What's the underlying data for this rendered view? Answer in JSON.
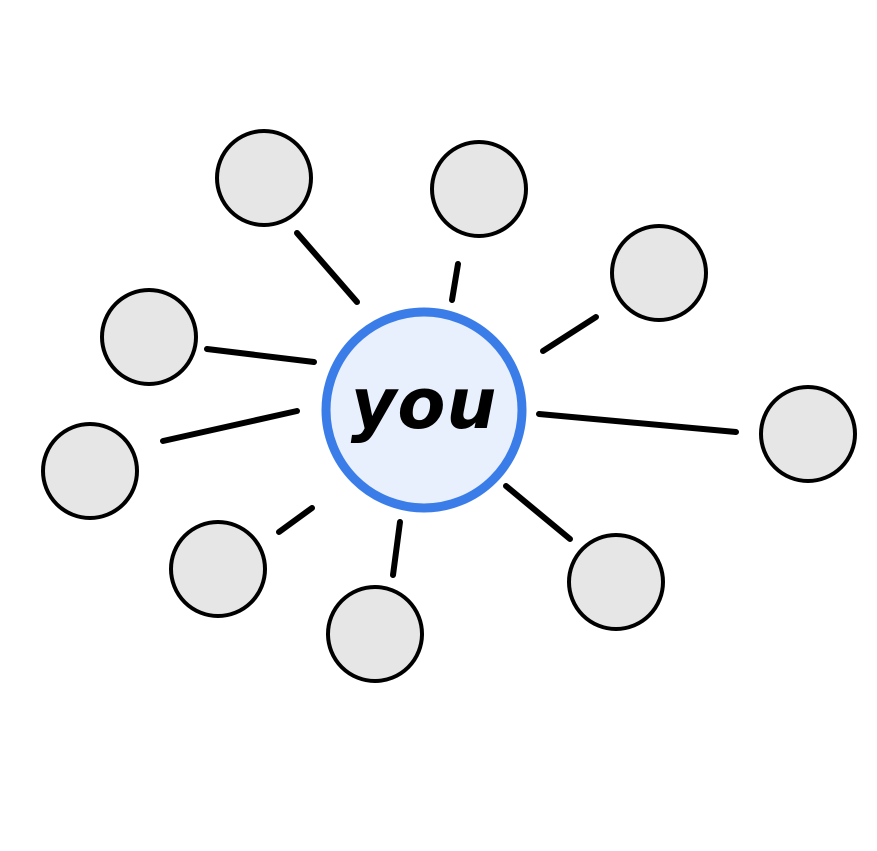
{
  "center": {
    "label": "you",
    "fill": "#e8f0fd",
    "stroke": "#3b7de8"
  },
  "peripheral_nodes": {
    "count": 9,
    "fill": "#e6e6e6",
    "stroke": "#000000"
  },
  "connector": {
    "color": "#000000"
  }
}
